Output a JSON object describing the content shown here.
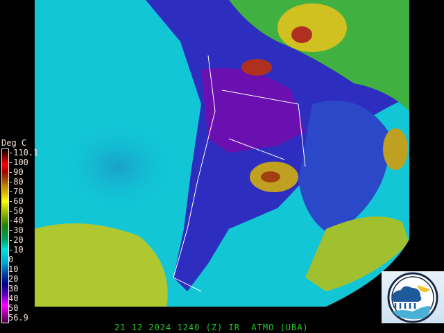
{
  "colorbar": {
    "unit_label": "Deg C",
    "ticks": [
      "-110.1",
      "-100",
      "-90",
      "-80",
      "-70",
      "-60",
      "-50",
      "-40",
      "-30",
      "-20",
      "-10",
      "0",
      "10",
      "20",
      "30",
      "40",
      "50",
      "56.9"
    ],
    "colors": [
      "#000000",
      "#ff0000",
      "#a00000",
      "#a04000",
      "#c08000",
      "#e0c000",
      "#ffff00",
      "#a0c000",
      "#208000",
      "#00a060",
      "#00e0e0",
      "#00a0d0",
      "#0040a0",
      "#000080",
      "#6000c0",
      "#ff00ff",
      "#400040"
    ]
  },
  "footer": {
    "caption": "21 12 2024 1240 (Z) IR  ATMO (UBA)"
  },
  "logo": {
    "name": "ATMO UBA weather logo"
  }
}
